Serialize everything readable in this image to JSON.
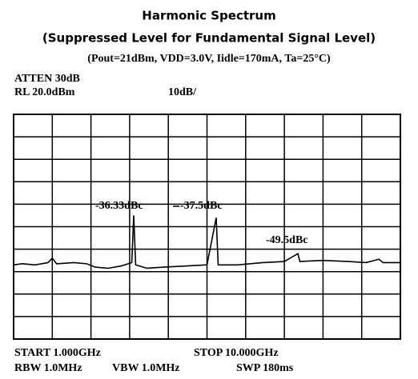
{
  "chart_data": {
    "type": "line",
    "title": "Harmonic Spectrum",
    "subtitle": "(Suppressed Level for Fundamental Signal Level)",
    "conditions": "(Pout=21dBm, VDD=3.0V, Iidle=170mA, Ta=25°C)",
    "annotations": {
      "atten": "ATTEN 30dB",
      "ref_level": "RL 20.0dBm",
      "scale": "10dB/",
      "peak_1": "-36.33dBc",
      "peak_2": "-37.5dBc",
      "peak_3": "-49.5dBc",
      "start": "START 1.000GHz",
      "stop": "STOP 10.000GHz",
      "rbw": "RBW 1.0MHz",
      "vbw": "VBW 1.0MHz",
      "sweep": "SWP 180ms"
    },
    "x": [
      1.0,
      1.2,
      1.5,
      1.8,
      1.9,
      2.0,
      2.4,
      2.7,
      2.9,
      3.2,
      3.5,
      3.75,
      3.795,
      3.84,
      4.1,
      4.5,
      5.0,
      5.5,
      5.714,
      5.76,
      6.2,
      6.8,
      7.3,
      7.615,
      7.66,
      8.2,
      8.8,
      9.2,
      9.5,
      9.6,
      10.0
    ],
    "series": [
      {
        "name": "trace",
        "color": "#000000",
        "values": [
          -47,
          -46.5,
          -47,
          -46,
          -44,
          -46.5,
          -46,
          -46.5,
          -48,
          -48.5,
          -47.5,
          -46,
          -25,
          -47,
          -48.5,
          -48,
          -47.5,
          -47,
          -26,
          -47,
          -47,
          -46,
          -45.5,
          -42,
          -45.5,
          -45,
          -45.5,
          -46,
          -44.5,
          -46,
          -46
        ]
      }
    ],
    "xlim": [
      1,
      10
    ],
    "ylim": [
      -80,
      20
    ],
    "xticks": [
      1,
      1.9,
      2.8,
      3.7,
      4.6,
      5.5,
      6.4,
      7.3,
      8.2,
      9.1,
      10
    ],
    "yticks": [
      -80,
      -70,
      -60,
      -50,
      -40,
      -30,
      -20,
      -10,
      0,
      10,
      20
    ],
    "grid": true
  }
}
